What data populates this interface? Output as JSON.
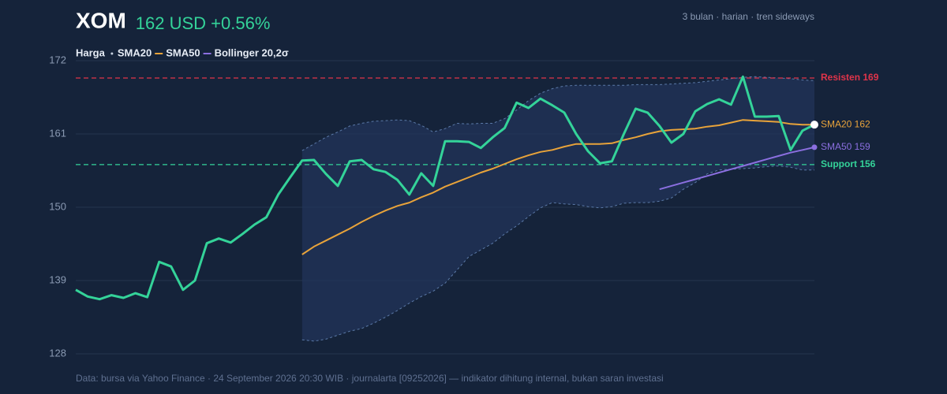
{
  "chart_data": {
    "type": "line",
    "ticker": "XOM",
    "price_label": "162 USD +0.56%",
    "subtitle": "3 bulan · harian · tren sideways",
    "footer": "Data: bursa via Yahoo Finance · 24 September 2026 20:30 WIB · journalarta [09252026] — indikator dihitung internal, bukan saran investasi",
    "ylim": [
      128,
      172
    ],
    "yticks": [
      128,
      139,
      150,
      161,
      172
    ],
    "grid": true,
    "series": [
      {
        "name": "Harga",
        "color": "#34d399",
        "values": [
          137.6,
          136.6,
          136.2,
          136.8,
          136.4,
          137.1,
          136.5,
          141.8,
          141.1,
          137.6,
          139.0,
          144.6,
          145.3,
          144.7,
          146.0,
          147.4,
          148.5,
          151.9,
          154.5,
          157.0,
          157.1,
          155.0,
          153.2,
          156.9,
          157.1,
          155.7,
          155.3,
          154.1,
          151.9,
          155.1,
          153.2,
          159.9,
          159.9,
          159.8,
          158.9,
          160.5,
          161.9,
          165.7,
          164.9,
          166.3,
          165.3,
          164.2,
          161.0,
          158.4,
          156.6,
          156.9,
          161.0,
          164.8,
          164.2,
          162.2,
          159.7,
          161.0,
          164.4,
          165.5,
          166.2,
          165.4,
          169.6,
          163.6,
          163.6,
          163.7,
          158.6,
          161.5,
          162.4
        ]
      },
      {
        "name": "SMA20",
        "color": "#e8a33a",
        "end_label": "SMA20 162",
        "values": [
          null,
          null,
          null,
          null,
          null,
          null,
          null,
          null,
          null,
          null,
          null,
          null,
          null,
          null,
          null,
          null,
          null,
          null,
          null,
          142.9,
          144.1,
          145.0,
          145.9,
          146.8,
          147.8,
          148.7,
          149.5,
          150.2,
          150.7,
          151.5,
          152.2,
          153.1,
          153.8,
          154.5,
          155.2,
          155.8,
          156.5,
          157.2,
          157.8,
          158.3,
          158.6,
          159.1,
          159.5,
          159.5,
          159.5,
          159.6,
          160.1,
          160.5,
          161.0,
          161.4,
          161.6,
          161.7,
          161.8,
          162.1,
          162.3,
          162.7,
          163.1,
          163.0,
          162.9,
          162.8,
          162.5,
          162.4,
          162.4
        ]
      },
      {
        "name": "SMA50",
        "color": "#8b6fe0",
        "end_label": "SMA50 159",
        "values": [
          null,
          null,
          null,
          null,
          null,
          null,
          null,
          null,
          null,
          null,
          null,
          null,
          null,
          null,
          null,
          null,
          null,
          null,
          null,
          null,
          null,
          null,
          null,
          null,
          null,
          null,
          null,
          null,
          null,
          null,
          null,
          null,
          null,
          null,
          null,
          null,
          null,
          null,
          null,
          null,
          null,
          null,
          null,
          null,
          null,
          null,
          null,
          null,
          null,
          152.7,
          153.2,
          153.7,
          154.2,
          154.7,
          155.2,
          155.7,
          156.2,
          156.7,
          157.2,
          157.7,
          158.2,
          158.6,
          159.0
        ]
      }
    ],
    "bollinger": {
      "name": "Bollinger 20,2σ",
      "color": "#5b7aa8",
      "upper": [
        null,
        null,
        null,
        null,
        null,
        null,
        null,
        null,
        null,
        null,
        null,
        null,
        null,
        null,
        null,
        null,
        null,
        null,
        null,
        158.5,
        159.5,
        160.5,
        161.3,
        162.2,
        162.6,
        162.9,
        163.0,
        163.1,
        163.0,
        162.3,
        161.3,
        161.8,
        162.6,
        162.5,
        162.6,
        162.6,
        163.3,
        164.6,
        166.0,
        167.1,
        167.8,
        168.2,
        168.3,
        168.3,
        168.3,
        168.3,
        168.3,
        168.4,
        168.4,
        168.4,
        168.5,
        168.6,
        168.7,
        168.9,
        169.1,
        169.3,
        169.5,
        169.6,
        169.5,
        169.4,
        169.3,
        169.1,
        169.0
      ],
      "lower": [
        null,
        null,
        null,
        null,
        null,
        null,
        null,
        null,
        null,
        null,
        null,
        null,
        null,
        null,
        null,
        null,
        null,
        null,
        null,
        130.1,
        129.9,
        130.2,
        130.8,
        131.4,
        131.8,
        132.6,
        133.5,
        134.5,
        135.6,
        136.6,
        137.4,
        138.6,
        140.6,
        142.6,
        143.6,
        144.6,
        146.0,
        147.2,
        148.6,
        149.9,
        150.7,
        150.5,
        150.4,
        150.1,
        149.9,
        150.1,
        150.6,
        150.7,
        150.7,
        150.9,
        151.4,
        152.7,
        153.7,
        155.0,
        155.6,
        155.7,
        155.8,
        155.9,
        156.1,
        156.2,
        156.0,
        155.6,
        155.6
      ]
    },
    "reference_lines": [
      {
        "label": "Resisten 169",
        "value": 169.4,
        "color": "#e0344a"
      },
      {
        "label": "Support 156",
        "value": 156.4,
        "color": "#34d399"
      }
    ]
  }
}
